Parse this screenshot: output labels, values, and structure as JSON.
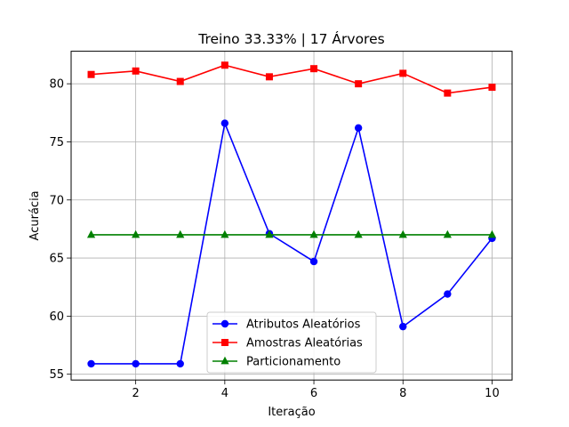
{
  "chart_data": {
    "type": "line",
    "title": "Treino 33.33% | 17 Árvores",
    "xlabel": "Iteração",
    "ylabel": "Acurácia",
    "x": [
      1,
      2,
      3,
      4,
      5,
      6,
      7,
      8,
      9,
      10
    ],
    "xlim": [
      0.55,
      10.45
    ],
    "ylim": [
      54.5,
      82.8
    ],
    "xticks": [
      2,
      4,
      6,
      8,
      10
    ],
    "yticks": [
      55,
      60,
      65,
      70,
      75,
      80
    ],
    "grid": true,
    "legend_position": "lower center",
    "series": [
      {
        "name": "Atributos Aleatórios",
        "color": "#0000ff",
        "marker": "circle",
        "values": [
          55.9,
          55.9,
          55.9,
          76.6,
          67.1,
          64.7,
          76.2,
          59.1,
          61.9,
          66.7
        ]
      },
      {
        "name": "Amostras Aleatórias",
        "color": "#ff0000",
        "marker": "square",
        "values": [
          80.8,
          81.1,
          80.2,
          81.6,
          80.6,
          81.3,
          80.0,
          80.9,
          79.2,
          79.7
        ]
      },
      {
        "name": "Particionamento",
        "color": "#008000",
        "marker": "triangle",
        "values": [
          67.0,
          67.0,
          67.0,
          67.0,
          67.0,
          67.0,
          67.0,
          67.0,
          67.0,
          67.0
        ]
      }
    ]
  }
}
